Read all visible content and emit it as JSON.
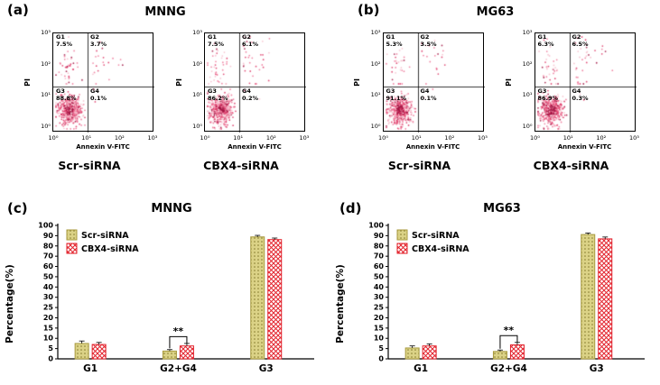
{
  "panels": {
    "a": {
      "label": "(a)",
      "title": "MNNG",
      "plots": [
        {
          "name": "Scr-siRNA",
          "xlabel": "Annexin V-FITC",
          "ylabel": "PI",
          "g1": {
            "name": "G1",
            "pct": "7.5%"
          },
          "g2": {
            "name": "G2",
            "pct": "3.7%"
          },
          "g3": {
            "name": "G3",
            "pct": "88.8%"
          },
          "g4": {
            "name": "G4",
            "pct": "0.1%"
          }
        },
        {
          "name": "CBX4-siRNA",
          "xlabel": "Annexin V-FITC",
          "ylabel": "PI",
          "g1": {
            "name": "G1",
            "pct": "7.5%"
          },
          "g2": {
            "name": "G2",
            "pct": "6.1%"
          },
          "g3": {
            "name": "G3",
            "pct": "86.2%"
          },
          "g4": {
            "name": "G4",
            "pct": "0.2%"
          }
        }
      ]
    },
    "b": {
      "label": "(b)",
      "title": "MG63",
      "plots": [
        {
          "name": "Scr-siRNA",
          "xlabel": "Annexin V-FITC",
          "ylabel": "PI",
          "g1": {
            "name": "G1",
            "pct": "5.3%"
          },
          "g2": {
            "name": "G2",
            "pct": "3.5%"
          },
          "g3": {
            "name": "G3",
            "pct": "91.1%"
          },
          "g4": {
            "name": "G4",
            "pct": "0.1%"
          }
        },
        {
          "name": "CBX4-siRNA",
          "xlabel": "Annexin V-FITC",
          "ylabel": "PI",
          "g1": {
            "name": "G1",
            "pct": "6.3%"
          },
          "g2": {
            "name": "G2",
            "pct": "6.5%"
          },
          "g3": {
            "name": "G3",
            "pct": "86.9%"
          },
          "g4": {
            "name": "G4",
            "pct": "0.3%"
          }
        }
      ]
    },
    "c": {
      "label": "(c)",
      "title": "MNNG",
      "ylabel": "Percentage(%)"
    },
    "d": {
      "label": "(d)",
      "title": "MG63",
      "ylabel": "Percentage(%)"
    }
  },
  "axis_ticks": [
    "10⁰",
    "10¹",
    "10²",
    "10³"
  ],
  "colors": {
    "scr_fill": "#dbd286",
    "scr_dot": "#857b2e",
    "scr_edge": "#a89a3e",
    "cbx_red": "#e3242e",
    "point_palette": [
      "#f6bcca",
      "#ef7496",
      "#dd3263",
      "#a01140"
    ]
  },
  "chart_data": [
    {
      "type": "scatter",
      "panel": "(a)",
      "title": "MNNG",
      "xlabel": "Annexin V-FITC",
      "ylabel": "PI",
      "x_scale": "log10, 10^0 to 10^3",
      "y_scale": "log10, 10^0 to 10^3",
      "plots": [
        {
          "label": "Scr-siRNA",
          "quadrant_pct": {
            "G1": 7.5,
            "G2": 3.7,
            "G3": 88.8,
            "G4": 0.1
          }
        },
        {
          "label": "CBX4-siRNA",
          "quadrant_pct": {
            "G1": 7.5,
            "G2": 6.1,
            "G3": 86.2,
            "G4": 0.2
          }
        }
      ]
    },
    {
      "type": "scatter",
      "panel": "(b)",
      "title": "MG63",
      "xlabel": "Annexin V-FITC",
      "ylabel": "PI",
      "x_scale": "log10, 10^0 to 10^3",
      "y_scale": "log10, 10^0 to 10^3",
      "plots": [
        {
          "label": "Scr-siRNA",
          "quadrant_pct": {
            "G1": 5.3,
            "G2": 3.5,
            "G3": 91.1,
            "G4": 0.1
          }
        },
        {
          "label": "CBX4-siRNA",
          "quadrant_pct": {
            "G1": 6.3,
            "G2": 6.5,
            "G3": 86.9,
            "G4": 0.3
          }
        }
      ]
    },
    {
      "type": "bar",
      "panel": "(c)",
      "title": "MNNG",
      "ylabel": "Percentage(%)",
      "categories": [
        "G1",
        "G2+G4",
        "G3"
      ],
      "series": [
        {
          "name": "Scr-siRNA",
          "values": [
            7.5,
            3.8,
            88.8
          ],
          "errors": [
            1.2,
            0.7,
            1.5
          ]
        },
        {
          "name": "CBX4-siRNA",
          "values": [
            7.0,
            6.3,
            86.2
          ],
          "errors": [
            1.0,
            1.2,
            1.5
          ]
        }
      ],
      "y_ticks": [
        0,
        5,
        10,
        15,
        20,
        25,
        30,
        40,
        50,
        60,
        70,
        80,
        90,
        100
      ],
      "axis_note": "segmented axis: 0-25 step 5, 30-100 step 10",
      "significance": {
        "category": "G2+G4",
        "label": "**"
      },
      "legend_position": "top-left"
    },
    {
      "type": "bar",
      "panel": "(d)",
      "title": "MG63",
      "ylabel": "Percentage(%)",
      "categories": [
        "G1",
        "G2+G4",
        "G3"
      ],
      "series": [
        {
          "name": "Scr-siRNA",
          "values": [
            5.3,
            3.6,
            91.1
          ],
          "errors": [
            1.0,
            0.7,
            1.5
          ]
        },
        {
          "name": "CBX4-siRNA",
          "values": [
            6.3,
            6.8,
            86.9
          ],
          "errors": [
            1.0,
            1.2,
            1.8
          ]
        }
      ],
      "y_ticks": [
        0,
        5,
        10,
        15,
        20,
        25,
        30,
        40,
        50,
        60,
        70,
        80,
        90,
        100
      ],
      "axis_note": "segmented axis: 0-25 step 5, 30-100 step 10",
      "significance": {
        "category": "G2+G4",
        "label": "**"
      },
      "legend_position": "top-left"
    }
  ]
}
